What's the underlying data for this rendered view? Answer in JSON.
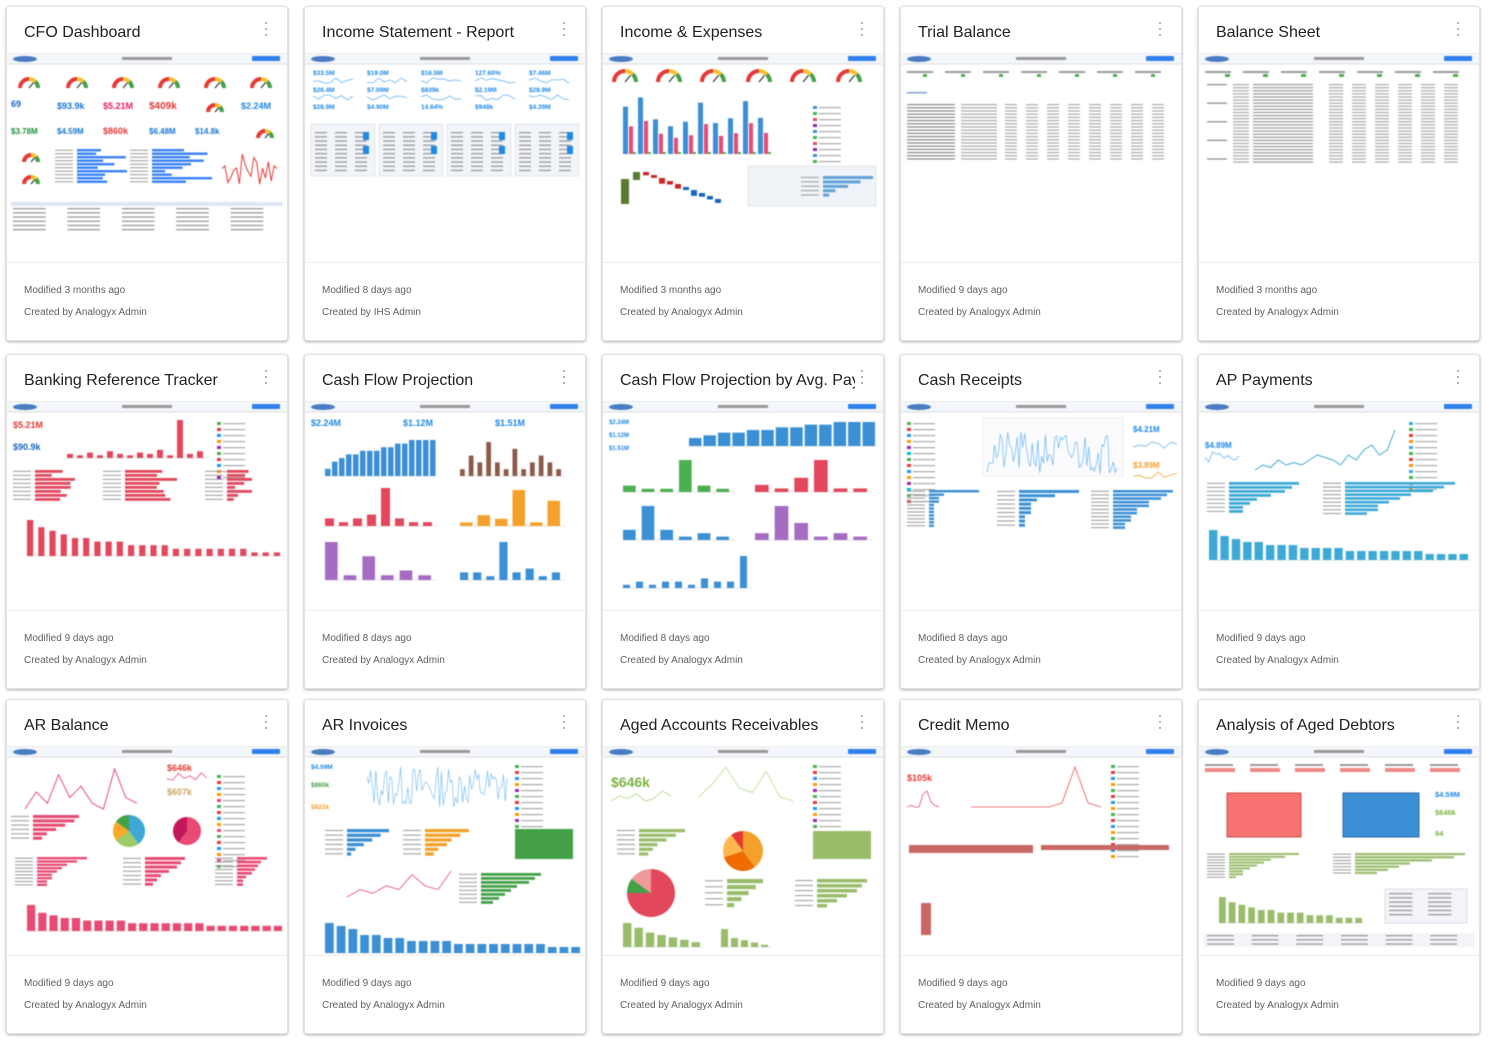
{
  "cards": [
    {
      "title": "CFO Dashboard",
      "modified": "Modified 3 months ago",
      "created": "Created by Analogyx Admin",
      "thumb": "cfo"
    },
    {
      "title": "Income Statement - Report",
      "modified": "Modified 8 days ago",
      "created": "Created by IHS Admin",
      "thumb": "income"
    },
    {
      "title": "Income & Expenses",
      "modified": "Modified 3 months ago",
      "created": "Created by Analogyx Admin",
      "thumb": "incexp"
    },
    {
      "title": "Trial Balance",
      "modified": "Modified 9 days ago",
      "created": "Created by Analogyx Admin",
      "thumb": "trial"
    },
    {
      "title": "Balance Sheet",
      "modified": "Modified 3 months ago",
      "created": "Created by Analogyx Admin",
      "thumb": "balance"
    },
    {
      "title": "Banking Reference Tracker",
      "modified": "Modified 9 days ago",
      "created": "Created by Analogyx Admin",
      "thumb": "banking"
    },
    {
      "title": "Cash Flow Projection",
      "modified": "Modified 8 days ago",
      "created": "Created by Analogyx Admin",
      "thumb": "cashflow"
    },
    {
      "title": "Cash Flow Projection by Avg. Pay Da",
      "modified": "Modified 8 days ago",
      "created": "Created by Analogyx Admin",
      "thumb": "cashflowavg"
    },
    {
      "title": "Cash Receipts",
      "modified": "Modified 8 days ago",
      "created": "Created by Analogyx Admin",
      "thumb": "receipts"
    },
    {
      "title": "AP Payments",
      "modified": "Modified 9 days ago",
      "created": "Created by Analogyx Admin",
      "thumb": "ap"
    },
    {
      "title": "AR Balance",
      "modified": "Modified 9 days ago",
      "created": "Created by Analogyx Admin",
      "thumb": "arbal"
    },
    {
      "title": "AR Invoices",
      "modified": "Modified 9 days ago",
      "created": "Created by Analogyx Admin",
      "thumb": "arinv"
    },
    {
      "title": "Aged Accounts Receivables",
      "modified": "Modified 9 days ago",
      "created": "Created by Analogyx Admin",
      "thumb": "aged"
    },
    {
      "title": "Credit Memo",
      "modified": "Modified 9 days ago",
      "created": "Created by Analogyx Admin",
      "thumb": "credit"
    },
    {
      "title": "Analysis of Aged Debtors",
      "modified": "Modified 9 days ago",
      "created": "Created by Analogyx Admin",
      "thumb": "debtors"
    }
  ],
  "thumb_text": {
    "cfo": [
      "$93.9k",
      "$5.21M",
      "$409k",
      "$2.24M",
      "69",
      "$3.78M",
      "$4.59M",
      "$860k",
      "$6.48M",
      "$14.8k"
    ],
    "income": [
      "$33.5M",
      "$19.0M",
      "$16.5M",
      "127.60%",
      "$7.46M",
      "$26.4M",
      "$7.09M",
      "$839k",
      "$2.19M",
      "$28.9M",
      "$4.90M",
      "14.64%",
      "$948k",
      "$4.39M"
    ],
    "banking": [
      "$5.21M",
      "$90.9k"
    ],
    "cashflow": [
      "$2.24M",
      "$1.12M",
      "$1.51M"
    ],
    "cashflowavg": [
      "$2.24M",
      "$1.12M",
      "$1.51M"
    ],
    "receipts": [
      "$4.21M",
      "$3.89M"
    ],
    "ap": [
      "$4.89M"
    ],
    "arbal": [
      "$646k",
      "$607k"
    ],
    "arinv": [
      "$4.59M",
      "$860k",
      "$822k"
    ],
    "aged": [
      "$646k"
    ],
    "credit": [
      "$105k"
    ],
    "debtors": [
      "$4.59M",
      "$646k",
      "94"
    ]
  },
  "colors": {
    "blue": "#3b8fd4",
    "red": "#e2475b",
    "green": "#4caf50",
    "orange": "#f5a02a",
    "purple": "#a56cc1",
    "teal": "#3da9d6",
    "pink": "#e94a73",
    "olive": "#9abd6c",
    "darkblue": "#1f5fa8",
    "salmon": "#f47c7c"
  }
}
